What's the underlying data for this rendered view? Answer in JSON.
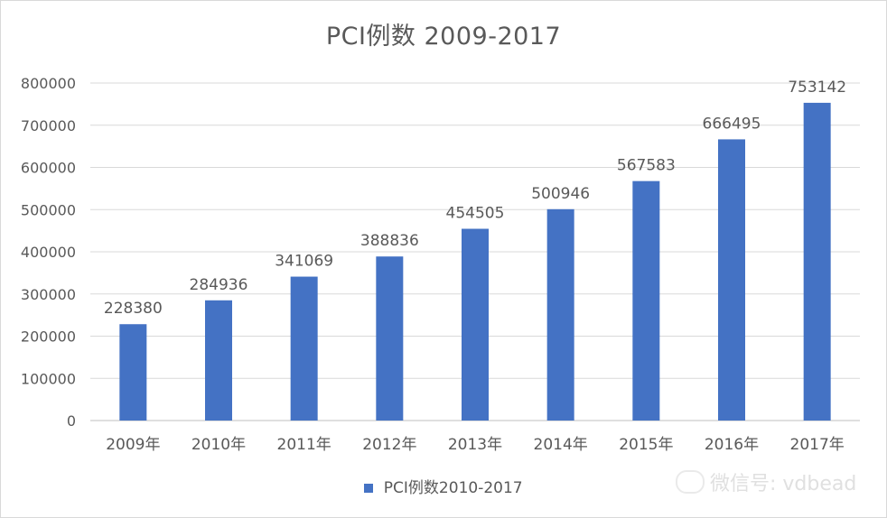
{
  "chart_data": {
    "type": "bar",
    "title": "PCI例数 2009-2017",
    "categories": [
      "2009年",
      "2010年",
      "2011年",
      "2012年",
      "2013年",
      "2014年",
      "2015年",
      "2016年",
      "2017年"
    ],
    "series": [
      {
        "name": "PCI例数2010-2017",
        "values": [
          228380,
          284936,
          341069,
          388836,
          454505,
          500946,
          567583,
          666495,
          753142
        ]
      }
    ],
    "ylim": [
      0,
      800000
    ],
    "yticks": [
      0,
      100000,
      200000,
      300000,
      400000,
      500000,
      600000,
      700000,
      800000
    ],
    "grid": true,
    "legend_position": "bottom",
    "bar_color": "#4472c4"
  },
  "watermark": {
    "text": "微信号: vdbead",
    "icon": "wechat-icon"
  }
}
